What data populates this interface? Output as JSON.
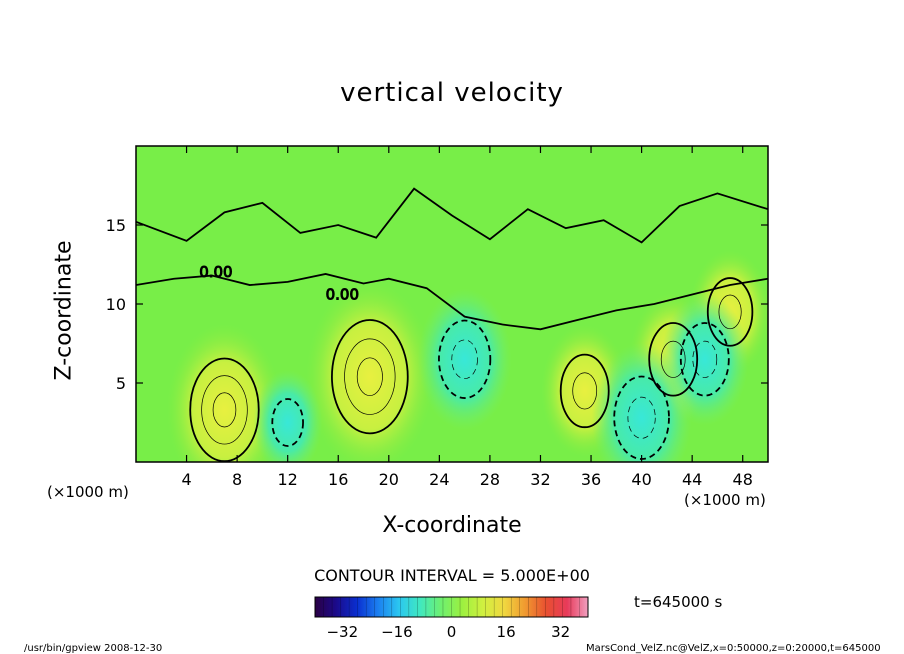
{
  "chart_data": {
    "type": "heatmap",
    "title": "vertical velocity",
    "xlabel": "X-coordinate",
    "ylabel": "Z-coordinate",
    "x_unit": "(×1000 m)",
    "z_unit": "(×1000 m)",
    "xlim": [
      0,
      50
    ],
    "ylim": [
      0,
      20
    ],
    "x_ticks": [
      4,
      8,
      12,
      16,
      20,
      24,
      28,
      32,
      36,
      40,
      44,
      48
    ],
    "y_ticks": [
      5,
      10,
      15
    ],
    "contour_label": "0.00",
    "contour_interval_text": "CONTOUR INTERVAL = 5.000E+00",
    "colorbar": {
      "min": -40,
      "max": 40,
      "ticks": [
        -32,
        -16,
        0,
        16,
        32
      ],
      "colors": [
        "#2a0044",
        "#1b0a8a",
        "#0a2fd0",
        "#1b7ff0",
        "#2bc7f0",
        "#40e8c0",
        "#6ef070",
        "#9cf040",
        "#d0f040",
        "#f0d840",
        "#f09a30",
        "#e85030",
        "#e83a5a",
        "#f0a0c0"
      ]
    },
    "time_label": "t=645000 s",
    "features": [
      {
        "kind": "updraft",
        "x": 7,
        "z": 3.3,
        "w": 10.5
      },
      {
        "kind": "updraft",
        "x": 18.5,
        "z": 5.4,
        "w": 12.5
      },
      {
        "kind": "updraft",
        "x": 35.5,
        "z": 4.5,
        "w": 6
      },
      {
        "kind": "updraft",
        "x": 42.5,
        "z": 6.5,
        "w": 6
      },
      {
        "kind": "updraft",
        "x": 47,
        "z": 9.5,
        "w": 5
      },
      {
        "kind": "downdraft",
        "x": 26,
        "z": 6.5,
        "w": -7
      },
      {
        "kind": "downdraft",
        "x": 40,
        "z": 2.8,
        "w": -8
      },
      {
        "kind": "downdraft",
        "x": 45,
        "z": 6.5,
        "w": -6
      },
      {
        "kind": "downdraft",
        "x": 12,
        "z": 2.5,
        "w": -3
      }
    ]
  },
  "footer": {
    "left": "/usr/bin/gpview   2008-12-30",
    "right": "MarsCond_VelZ.nc@VelZ,x=0:50000,z=0:20000,t=645000"
  }
}
